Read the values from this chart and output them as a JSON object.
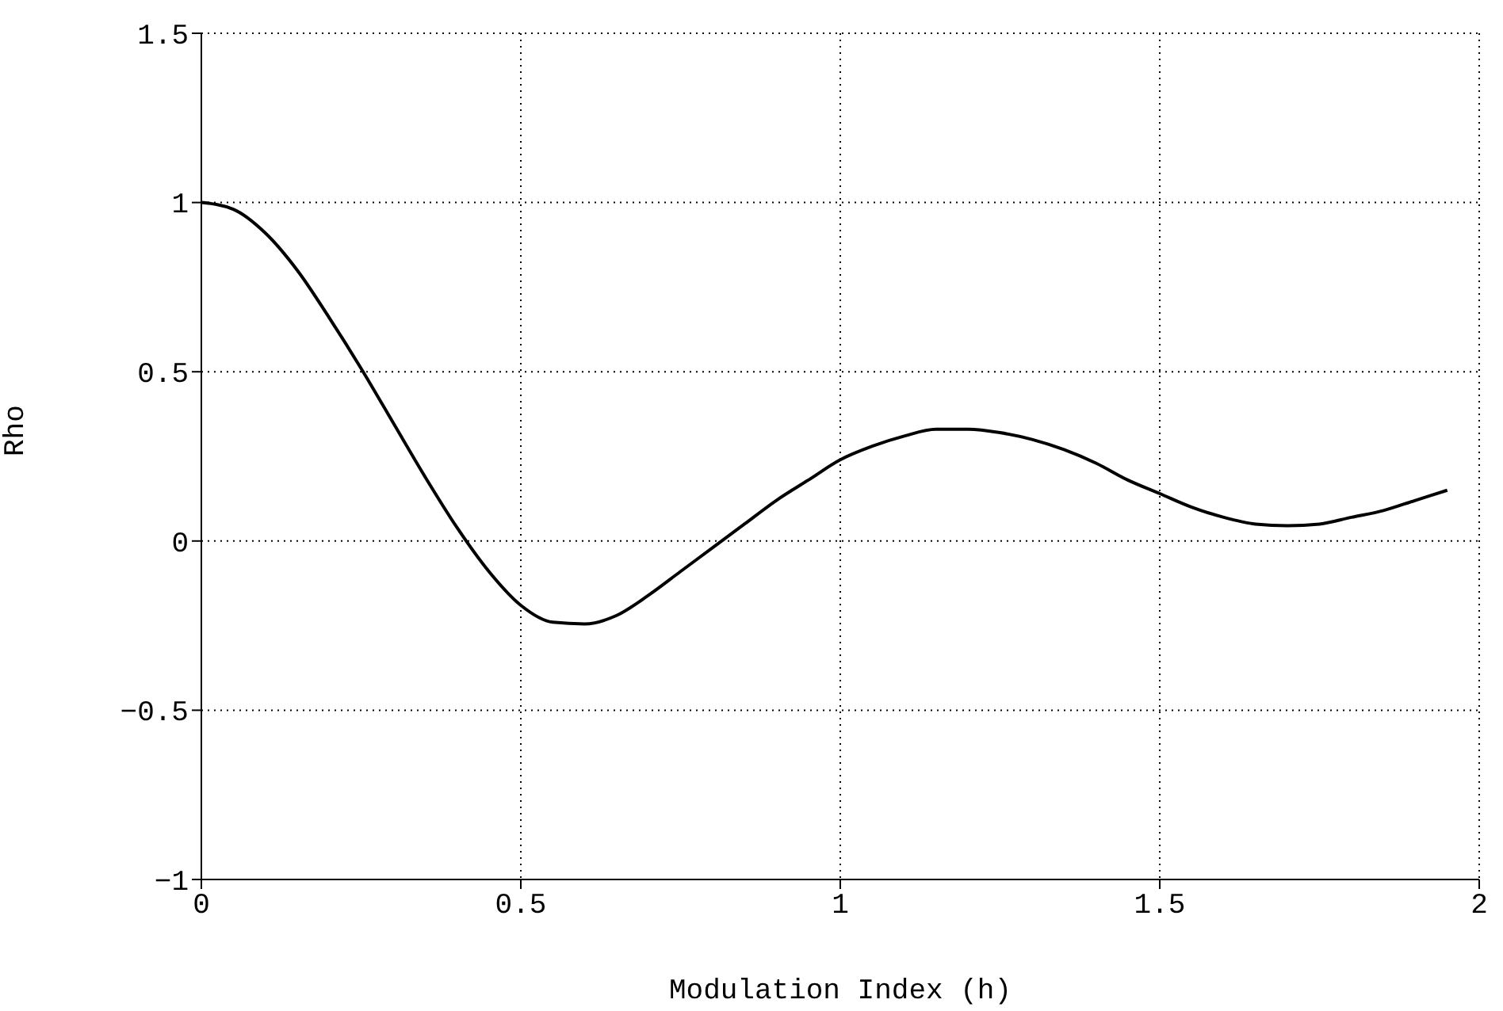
{
  "chart_data": {
    "type": "line",
    "xlabel": "Modulation Index (h)",
    "ylabel": "Rho",
    "x": [
      0,
      0.05,
      0.1,
      0.15,
      0.2,
      0.25,
      0.3,
      0.35,
      0.4,
      0.45,
      0.5,
      0.55,
      0.6,
      0.65,
      0.7,
      0.75,
      0.8,
      0.85,
      0.9,
      0.95,
      1.0,
      1.05,
      1.1,
      1.15,
      1.2,
      1.25,
      1.3,
      1.35,
      1.4,
      1.45,
      1.5,
      1.55,
      1.6,
      1.65,
      1.7,
      1.75,
      1.8,
      1.85,
      1.9,
      1.95
    ],
    "series": [
      {
        "color": "#000000",
        "values": [
          1,
          0.98,
          0.91,
          0.8,
          0.66,
          0.51,
          0.35,
          0.19,
          0.04,
          -0.09,
          -0.19,
          -0.24,
          -0.245,
          -0.22,
          -0.16,
          -0.09,
          -0.02,
          0.05,
          0.12,
          0.18,
          0.24,
          0.28,
          0.31,
          0.33,
          0.33,
          0.32,
          0.3,
          0.27,
          0.23,
          0.18,
          0.14,
          0.1,
          0.07,
          0.05,
          0.045,
          0.05,
          0.07,
          0.09,
          0.12,
          0.15
        ]
      }
    ],
    "xlim": [
      0,
      2
    ],
    "xticks": [
      0,
      0.5,
      1,
      1.5,
      2
    ],
    "ylim": [
      -1,
      1.5
    ],
    "yticks": [
      -1,
      -0.5,
      0,
      0.5,
      1,
      1.5
    ],
    "grid": true,
    "legend": false,
    "marker": "none",
    "line_style": "solid"
  }
}
